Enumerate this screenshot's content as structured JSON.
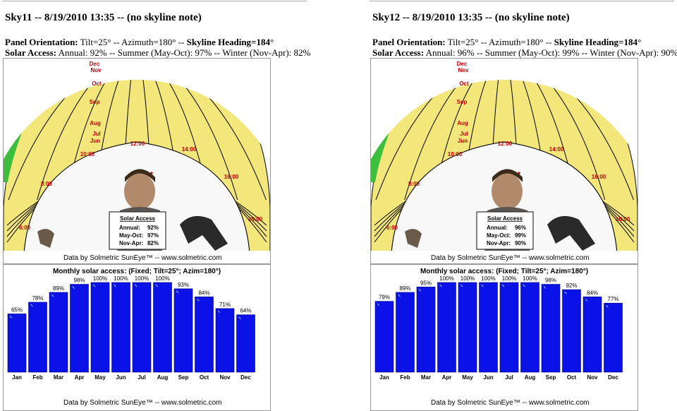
{
  "colors": {
    "bar": "#0a12e8",
    "bar_edge": "#000080",
    "sky_yellow": "#f3e67a",
    "shade_green": "#3cbf3c",
    "grid": "#000000",
    "month_label": "#c00000"
  },
  "panels": [
    {
      "title": "Sky11 -- 8/19/2010 13:35 -- (no skyline note)",
      "orientation": {
        "label": "Panel Orientation:",
        "tilt": "Tilt=25°",
        "sep1": " -- ",
        "azimuth": "Azimuth=180°",
        "sep2": " -- ",
        "heading": "Skyline Heading=184°"
      },
      "access": {
        "label": "Solar Access:",
        "text": "Annual: 92% -- Summer (May-Oct): 97% -- Winter (Nov-Apr): 82%"
      },
      "fisheye": {
        "month_labels": [
          "Dec",
          "Nov",
          "Oct",
          "Sep",
          "Aug",
          "Jul",
          "Jun"
        ],
        "hour_labels": [
          "10:00",
          "12:00",
          "14:00",
          "16:00",
          "8:00",
          "18:00",
          "6:00"
        ],
        "summary_title": "Solar Access",
        "summary_rows": [
          {
            "label": "Annual:",
            "value": "92%"
          },
          {
            "label": "May-Oct:",
            "value": "97%"
          },
          {
            "label": "Nov-Apr:",
            "value": "82%"
          }
        ],
        "credit": "Data by Solmetric SunEye™ -- www.solmetric.com"
      },
      "chart_data": {
        "type": "bar",
        "title": "Monthly solar access: (Fixed; Tilt=25°; Azim=180°)",
        "categories": [
          "Jan",
          "Feb",
          "Mar",
          "Apr",
          "May",
          "Jun",
          "Jul",
          "Aug",
          "Sep",
          "Oct",
          "Nov",
          "Dec"
        ],
        "values": [
          65,
          78,
          89,
          98,
          100,
          100,
          100,
          100,
          93,
          84,
          71,
          64
        ],
        "value_labels": [
          "65%",
          "78%",
          "89%",
          "98%",
          "100%",
          "100%",
          "100%",
          "100%",
          "93%",
          "84%",
          "71%",
          "64%"
        ],
        "ylim": [
          0,
          100
        ],
        "credit": "Data by Solmetric SunEye™ -- www.solmetric.com"
      }
    },
    {
      "title": "Sky12 -- 8/19/2010 13:35 -- (no skyline note)",
      "orientation": {
        "label": "Panel Orientation:",
        "tilt": "Tilt=25°",
        "sep1": " -- ",
        "azimuth": "Azimuth=180°",
        "sep2": " -- ",
        "heading": "Skyline Heading=184°"
      },
      "access": {
        "label": "Solar Access:",
        "text": "Annual: 96% -- Summer (May-Oct): 99% -- Winter (Nov-Apr): 90%"
      },
      "fisheye": {
        "month_labels": [
          "Dec",
          "Nov",
          "Oct",
          "Sep",
          "Aug",
          "Jul",
          "Jun"
        ],
        "hour_labels": [
          "10:00",
          "12:00",
          "14:00",
          "16:00",
          "8:00",
          "18:00",
          "6:00"
        ],
        "summary_title": "Solar Access",
        "summary_rows": [
          {
            "label": "Annual:",
            "value": "96%"
          },
          {
            "label": "May-Oct:",
            "value": "99%"
          },
          {
            "label": "Nov-Apr:",
            "value": "90%"
          }
        ],
        "credit": "Data by Solmetric SunEye™ -- www.solmetric.com"
      },
      "chart_data": {
        "type": "bar",
        "title": "Monthly solar access: (Fixed; Tilt=25°; Azim=180°)",
        "categories": [
          "Jan",
          "Feb",
          "Mar",
          "Apr",
          "May",
          "Jun",
          "Jul",
          "Aug",
          "Sep",
          "Oct",
          "Nov",
          "Dec"
        ],
        "values": [
          79,
          89,
          95,
          100,
          100,
          100,
          100,
          100,
          98,
          92,
          84,
          77
        ],
        "value_labels": [
          "79%",
          "89%",
          "95%",
          "100%",
          "100%",
          "100%",
          "100%",
          "100%",
          "98%",
          "92%",
          "84%",
          "77%"
        ],
        "ylim": [
          0,
          100
        ],
        "credit": "Data by Solmetric SunEye™ -- www.solmetric.com"
      }
    }
  ]
}
